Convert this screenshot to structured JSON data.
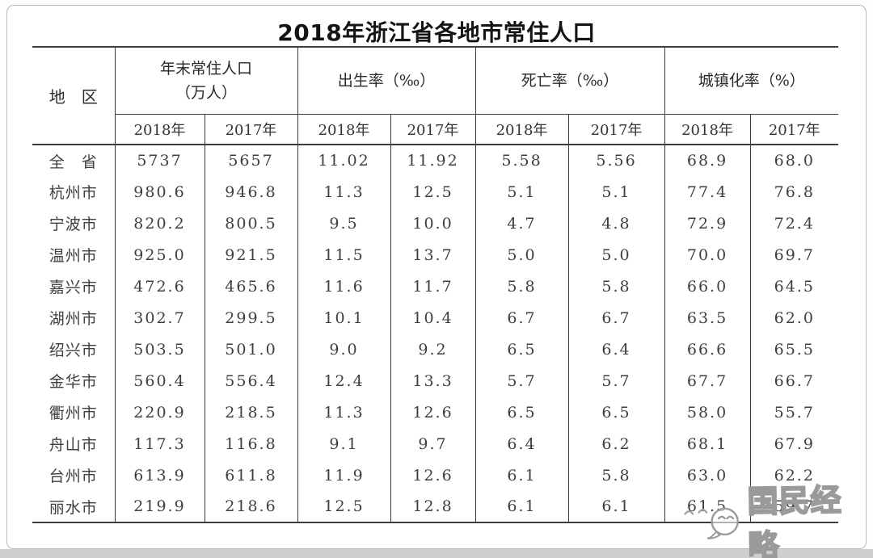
{
  "page": {
    "title": "2018年浙江省各地市常住人口",
    "card_border_color": "#b9b9b9",
    "bottom_strip_color": "#cfcfcf",
    "rule_color": "#3d3d3d"
  },
  "watermark": {
    "text": "国民经略",
    "icon": "chat-bubble-face-icon",
    "color": "#9a9a9a"
  },
  "chart_data": {
    "type": "table",
    "title": "2018年浙江省各地市常住人口",
    "corner_header": "地　区",
    "column_groups": [
      {
        "label": "年末常住人口",
        "sublabel": "（万人）"
      },
      {
        "label": "出生率（‰）",
        "sublabel": ""
      },
      {
        "label": "死亡率（‰）",
        "sublabel": ""
      },
      {
        "label": "城镇化率（%）",
        "sublabel": ""
      }
    ],
    "year_columns": [
      "2018年",
      "2017年"
    ],
    "rows": [
      {
        "region": "全　省",
        "values": [
          "5737",
          "5657",
          "11.02",
          "11.92",
          "5.58",
          "5.56",
          "68.9",
          "68.0"
        ]
      },
      {
        "region": "杭州市",
        "values": [
          "980.6",
          "946.8",
          "11.3",
          "12.5",
          "5.1",
          "5.1",
          "77.4",
          "76.8"
        ]
      },
      {
        "region": "宁波市",
        "values": [
          "820.2",
          "800.5",
          "9.5",
          "10.0",
          "4.7",
          "4.8",
          "72.9",
          "72.4"
        ]
      },
      {
        "region": "温州市",
        "values": [
          "925.0",
          "921.5",
          "11.5",
          "13.7",
          "5.0",
          "5.0",
          "70.0",
          "69.7"
        ]
      },
      {
        "region": "嘉兴市",
        "values": [
          "472.6",
          "465.6",
          "11.6",
          "11.7",
          "5.8",
          "5.8",
          "66.0",
          "64.5"
        ]
      },
      {
        "region": "湖州市",
        "values": [
          "302.7",
          "299.5",
          "10.1",
          "10.4",
          "6.7",
          "6.7",
          "63.5",
          "62.0"
        ]
      },
      {
        "region": "绍兴市",
        "values": [
          "503.5",
          "501.0",
          "9.0",
          "9.2",
          "6.5",
          "6.4",
          "66.6",
          "65.5"
        ]
      },
      {
        "region": "金华市",
        "values": [
          "560.4",
          "556.4",
          "12.4",
          "13.3",
          "5.7",
          "5.7",
          "67.7",
          "66.7"
        ]
      },
      {
        "region": "衢州市",
        "values": [
          "220.9",
          "218.5",
          "11.3",
          "12.6",
          "6.5",
          "6.5",
          "58.0",
          "55.7"
        ]
      },
      {
        "region": "舟山市",
        "values": [
          "117.3",
          "116.8",
          "9.1",
          "9.7",
          "6.4",
          "6.2",
          "68.1",
          "67.9"
        ]
      },
      {
        "region": "台州市",
        "values": [
          "613.9",
          "611.8",
          "11.9",
          "12.6",
          "6.1",
          "5.8",
          "63.0",
          "62.2"
        ]
      },
      {
        "region": "丽水市",
        "values": [
          "219.9",
          "218.6",
          "12.5",
          "12.8",
          "6.1",
          "6.1",
          "61.5",
          "59.7"
        ]
      }
    ]
  }
}
